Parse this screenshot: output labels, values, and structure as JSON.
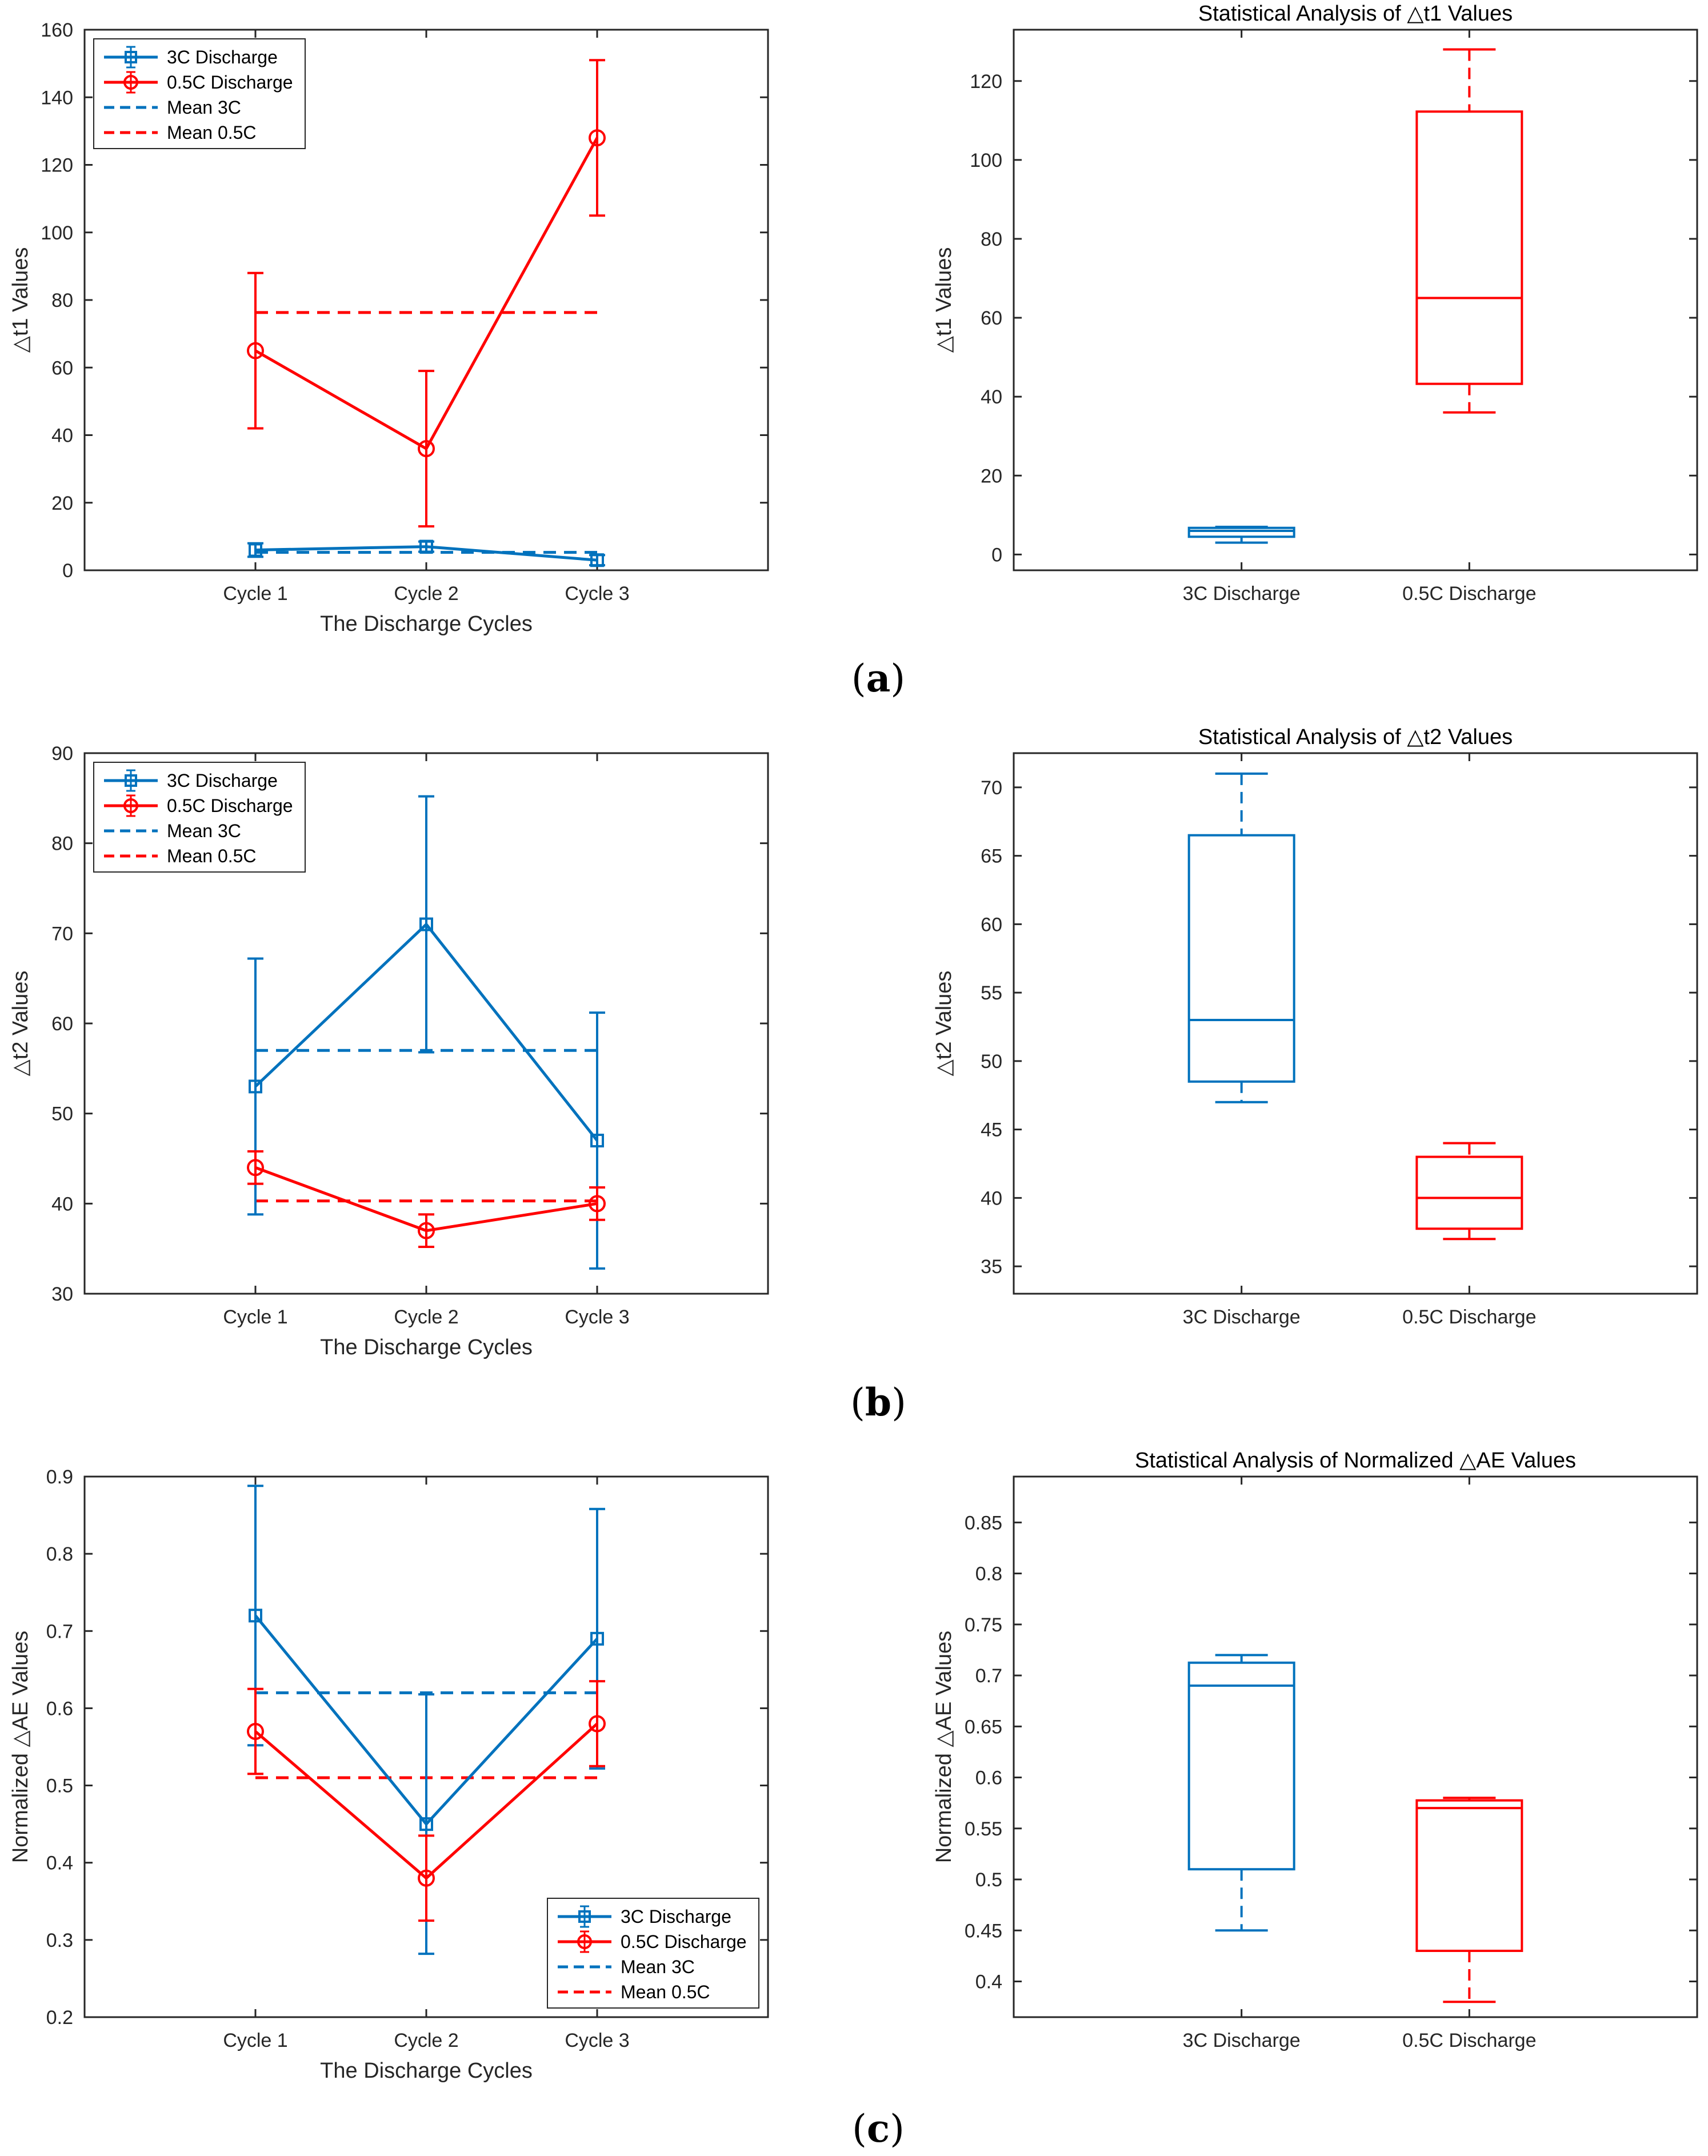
{
  "panel_labels": [
    "(a)",
    "(b)",
    "(c)"
  ],
  "colors": {
    "blue": "#0072BD",
    "red": "#FF0000",
    "axis": "#262626"
  },
  "chart_data": [
    {
      "id": "a-line",
      "type": "line",
      "title": "",
      "xlabel": "The Discharge Cycles",
      "ylabel": "△t1 Values",
      "categories": [
        "Cycle 1",
        "Cycle 2",
        "Cycle 3"
      ],
      "ylim": [
        0,
        160
      ],
      "yticks": [
        0,
        20,
        40,
        60,
        80,
        100,
        120,
        140,
        160
      ],
      "xlim": [
        0,
        4
      ],
      "legend": {
        "position": "top-left",
        "entries": [
          "3C Discharge",
          "0.5C Discharge",
          "Mean 3C",
          "Mean 0.5C"
        ]
      },
      "series": [
        {
          "name": "3C Discharge",
          "color": "#0072BD",
          "marker": "square",
          "values": [
            6,
            7,
            3
          ],
          "err": [
            2,
            1.5,
            1.5
          ]
        },
        {
          "name": "0.5C Discharge",
          "color": "#FF0000",
          "marker": "circle",
          "values": [
            65,
            36,
            128
          ],
          "err": [
            23,
            23,
            23
          ]
        }
      ],
      "means": [
        {
          "name": "Mean 3C",
          "color": "#0072BD",
          "value": 5.3
        },
        {
          "name": "Mean 0.5C",
          "color": "#FF0000",
          "value": 76.3
        }
      ]
    },
    {
      "id": "a-box",
      "type": "box",
      "title": "Statistical Analysis of △t1 Values",
      "xlabel": "",
      "ylabel": "△t1 Values",
      "categories": [
        "3C Discharge",
        "0.5C Discharge"
      ],
      "ylim": [
        -4,
        133
      ],
      "yticks": [
        0,
        20,
        40,
        60,
        80,
        100,
        120
      ],
      "boxes": [
        {
          "color": "#0072BD",
          "min": 3,
          "q1": 4.5,
          "median": 6,
          "q3": 6.75,
          "max": 7
        },
        {
          "color": "#FF0000",
          "min": 36,
          "q1": 43.25,
          "median": 65,
          "q3": 112.25,
          "max": 128
        }
      ]
    },
    {
      "id": "b-line",
      "type": "line",
      "title": "",
      "xlabel": "The Discharge Cycles",
      "ylabel": "△t2 Values",
      "categories": [
        "Cycle 1",
        "Cycle 2",
        "Cycle 3"
      ],
      "ylim": [
        30,
        90
      ],
      "yticks": [
        30,
        40,
        50,
        60,
        70,
        80,
        90
      ],
      "xlim": [
        0,
        4
      ],
      "legend": {
        "position": "top-left",
        "entries": [
          "3C Discharge",
          "0.5C Discharge",
          "Mean 3C",
          "Mean 0.5C"
        ]
      },
      "series": [
        {
          "name": "3C Discharge",
          "color": "#0072BD",
          "marker": "square",
          "values": [
            53,
            71,
            47
          ],
          "err": [
            14.2,
            14.2,
            14.2
          ]
        },
        {
          "name": "0.5C Discharge",
          "color": "#FF0000",
          "marker": "circle",
          "values": [
            44,
            37,
            40
          ],
          "err": [
            1.8,
            1.8,
            1.8
          ]
        }
      ],
      "means": [
        {
          "name": "Mean 3C",
          "color": "#0072BD",
          "value": 57
        },
        {
          "name": "Mean 0.5C",
          "color": "#FF0000",
          "value": 40.3
        }
      ]
    },
    {
      "id": "b-box",
      "type": "box",
      "title": "Statistical Analysis of △t2 Values",
      "xlabel": "",
      "ylabel": "△t2 Values",
      "categories": [
        "3C Discharge",
        "0.5C Discharge"
      ],
      "ylim": [
        33,
        72.5
      ],
      "yticks": [
        35,
        40,
        45,
        50,
        55,
        60,
        65,
        70
      ],
      "boxes": [
        {
          "color": "#0072BD",
          "min": 47,
          "q1": 48.5,
          "median": 53,
          "q3": 66.5,
          "max": 71
        },
        {
          "color": "#FF0000",
          "min": 37,
          "q1": 37.75,
          "median": 40,
          "q3": 43,
          "max": 44
        }
      ]
    },
    {
      "id": "c-line",
      "type": "line",
      "title": "",
      "xlabel": "The Discharge Cycles",
      "ylabel": "Normalized △AE Values",
      "categories": [
        "Cycle 1",
        "Cycle 2",
        "Cycle 3"
      ],
      "ylim": [
        0.2,
        0.9
      ],
      "yticks": [
        0.2,
        0.3,
        0.4,
        0.5,
        0.6,
        0.7,
        0.8,
        0.9
      ],
      "xlim": [
        0,
        4
      ],
      "legend": {
        "position": "bottom-right",
        "entries": [
          "3C Discharge",
          "0.5C Discharge",
          "Mean 3C",
          "Mean 0.5C"
        ]
      },
      "series": [
        {
          "name": "3C Discharge",
          "color": "#0072BD",
          "marker": "square",
          "values": [
            0.72,
            0.45,
            0.69
          ],
          "err": [
            0.168,
            0.168,
            0.168
          ]
        },
        {
          "name": "0.5C Discharge",
          "color": "#FF0000",
          "marker": "circle",
          "values": [
            0.57,
            0.38,
            0.58
          ],
          "err": [
            0.055,
            0.055,
            0.055
          ]
        }
      ],
      "means": [
        {
          "name": "Mean 3C",
          "color": "#0072BD",
          "value": 0.62
        },
        {
          "name": "Mean 0.5C",
          "color": "#FF0000",
          "value": 0.51
        }
      ]
    },
    {
      "id": "c-box",
      "type": "box",
      "title": "Statistical Analysis of Normalized △AE Values",
      "xlabel": "",
      "ylabel": "Normalized △AE Values",
      "categories": [
        "3C Discharge",
        "0.5C Discharge"
      ],
      "ylim": [
        0.365,
        0.895
      ],
      "yticks": [
        0.4,
        0.45,
        0.5,
        0.55,
        0.6,
        0.65,
        0.7,
        0.75,
        0.8,
        0.85
      ],
      "boxes": [
        {
          "color": "#0072BD",
          "min": 0.45,
          "q1": 0.51,
          "median": 0.69,
          "q3": 0.7125,
          "max": 0.72
        },
        {
          "color": "#FF0000",
          "min": 0.38,
          "q1": 0.43,
          "median": 0.57,
          "q3": 0.5775,
          "max": 0.58
        }
      ]
    }
  ]
}
